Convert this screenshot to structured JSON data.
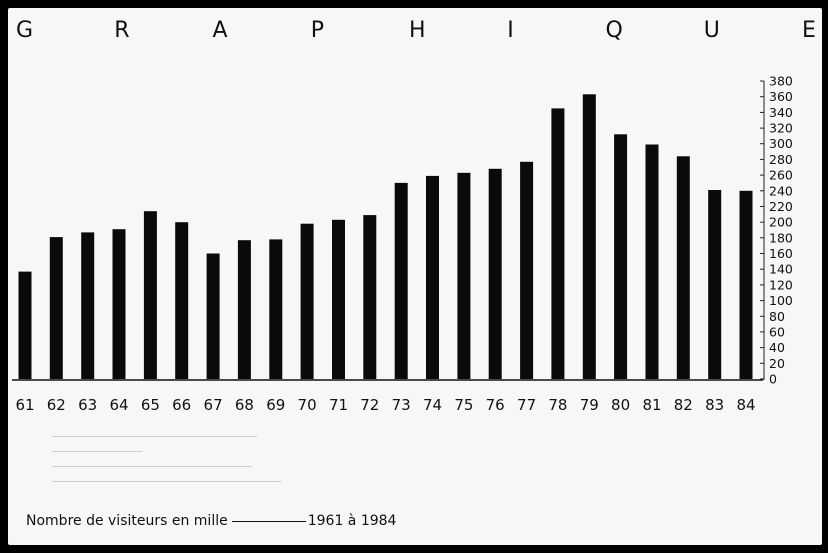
{
  "title_letters": [
    "G",
    "R",
    "A",
    "P",
    "H",
    "I",
    "Q",
    "U",
    "E"
  ],
  "caption": {
    "label": "Nombre de visiteurs en mille",
    "range": "1961 à 1984"
  },
  "chart_data": {
    "type": "bar",
    "title": "GRAPHIQUE",
    "xlabel": "",
    "ylabel": "",
    "ylim": [
      0,
      380
    ],
    "y_ticks": [
      0,
      20,
      40,
      60,
      80,
      100,
      120,
      140,
      160,
      180,
      200,
      220,
      240,
      260,
      280,
      300,
      320,
      340,
      360,
      380
    ],
    "y_axis_side": "right",
    "grid": false,
    "bar_color": "#0a0a0a",
    "categories": [
      "61",
      "62",
      "63",
      "64",
      "65",
      "66",
      "67",
      "68",
      "69",
      "70",
      "71",
      "72",
      "73",
      "74",
      "75",
      "76",
      "77",
      "78",
      "79",
      "80",
      "81",
      "82",
      "83",
      "84"
    ],
    "values": [
      137,
      181,
      187,
      191,
      214,
      200,
      160,
      177,
      178,
      198,
      203,
      209,
      250,
      259,
      263,
      268,
      277,
      345,
      363,
      312,
      299,
      284,
      241,
      240
    ]
  }
}
